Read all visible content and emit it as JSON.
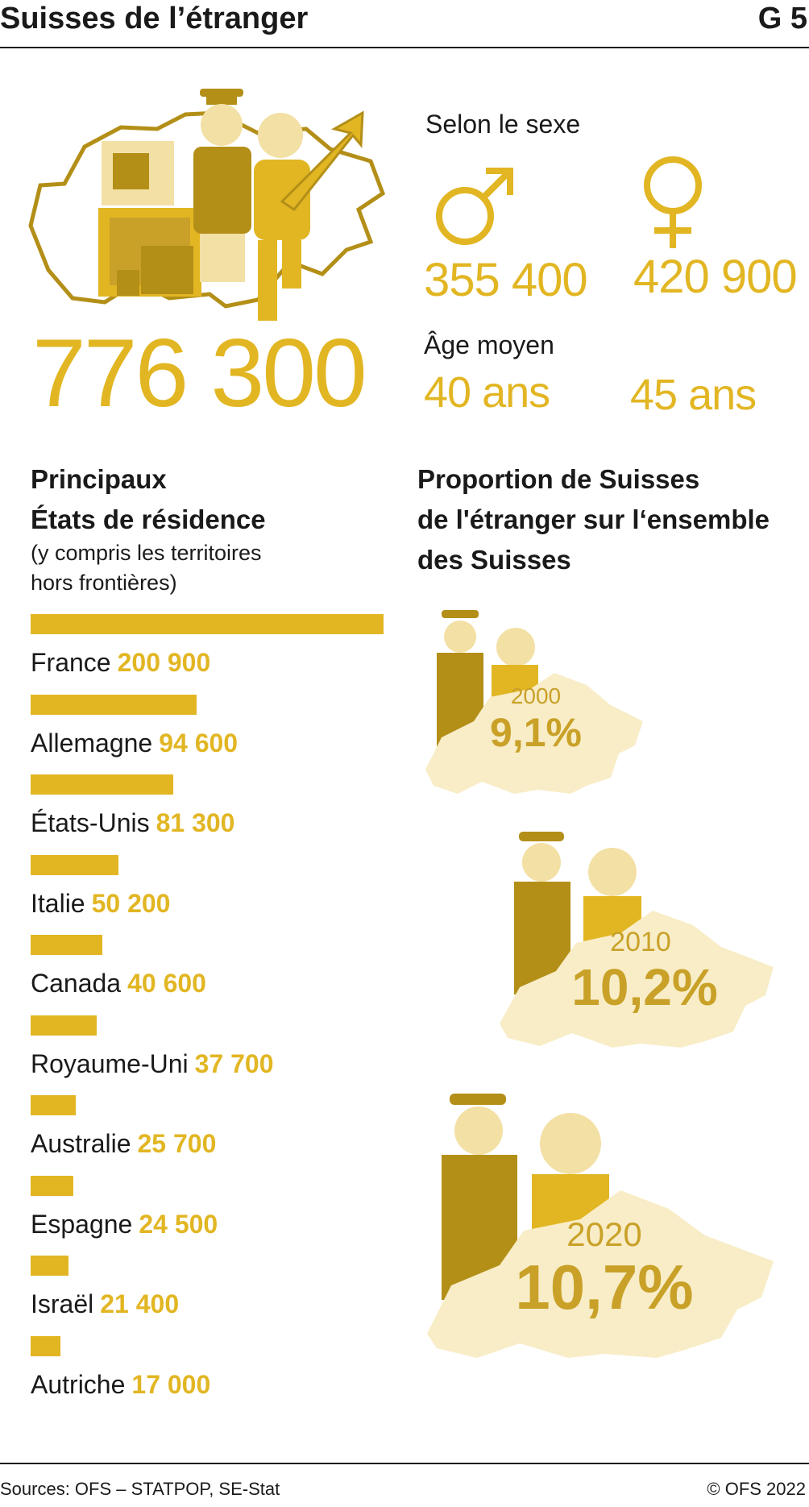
{
  "header": {
    "title": "Suisses de l’étranger",
    "code": "G 5"
  },
  "total": "776 300",
  "sexe": {
    "title": "Selon le sexe",
    "men_value": "355 400",
    "women_value": "420 900",
    "age_title": "Âge moyen",
    "men_age": "40 ans",
    "women_age": "45 ans"
  },
  "residence": {
    "title_line1": "Principaux",
    "title_line2": "États de résidence",
    "subtitle_line1": "(y compris les territoires",
    "subtitle_line2": "hors frontières)"
  },
  "proportion": {
    "title_line1": "Proportion de Suisses",
    "title_line2": "de l'étranger sur l‘ensemble",
    "title_line3": "des Suisses",
    "items": [
      {
        "year": "2000",
        "value": "9,1%"
      },
      {
        "year": "2010",
        "value": "10,2%"
      },
      {
        "year": "2020",
        "value": "10,7%"
      }
    ]
  },
  "chart_data": {
    "type": "bar",
    "orientation": "horizontal",
    "categories": [
      "France",
      "Allemagne",
      "États-Unis",
      "Italie",
      "Canada",
      "Royaume-Uni",
      "Australie",
      "Espagne",
      "Israël",
      "Autriche"
    ],
    "values": [
      200900,
      94600,
      81300,
      50200,
      40600,
      37700,
      25700,
      24500,
      21400,
      17000
    ],
    "labels": [
      "200 900",
      "94 600",
      "81 300",
      "50 200",
      "40 600",
      "37 700",
      "25 700",
      "24 500",
      "21 400",
      "17 000"
    ],
    "color": "#e2b623"
  },
  "footer": {
    "source": "Sources: OFS – STATPOP, SE-Stat",
    "copyright": "© OFS 2022"
  },
  "colors": {
    "gold": "#e2b623",
    "dark_gold": "#b38f18",
    "pale": "#f8edc7",
    "light": "#f3e0a4"
  }
}
